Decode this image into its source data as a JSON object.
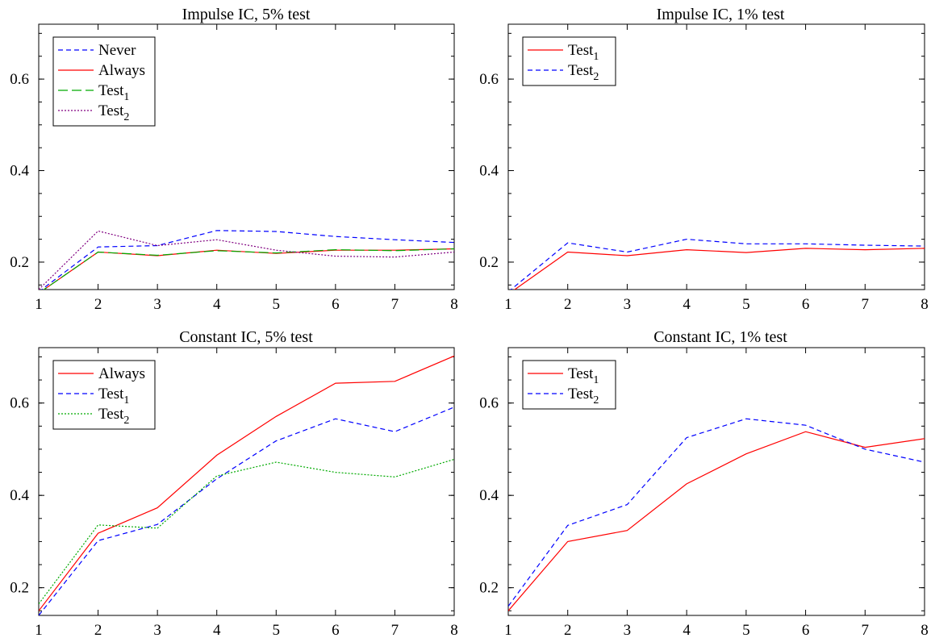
{
  "chart_data": [
    {
      "type": "line",
      "title": "Impulse IC, 5% test",
      "x": [
        1,
        2,
        3,
        4,
        5,
        6,
        7,
        8
      ],
      "xlim": [
        1,
        8
      ],
      "ylim": [
        0.14,
        0.72
      ],
      "xticks": [
        "1",
        "2",
        "3",
        "4",
        "5",
        "6",
        "7",
        "8"
      ],
      "yticks": [
        "0.2",
        "0.4",
        "0.6"
      ],
      "ytick_values": [
        0.2,
        0.4,
        0.6
      ],
      "legend_position": "top-left",
      "series": [
        {
          "name": "Never",
          "sub": "",
          "color": "#0000ff",
          "dash": "6,4",
          "values": [
            0.135,
            0.233,
            0.236,
            0.269,
            0.267,
            0.256,
            0.249,
            0.243
          ]
        },
        {
          "name": "Always",
          "sub": "",
          "color": "#ff0000",
          "dash": "",
          "values": [
            0.132,
            0.222,
            0.214,
            0.226,
            0.219,
            0.226,
            0.226,
            0.229
          ]
        },
        {
          "name": "Test",
          "sub": "1",
          "color": "#00aa00",
          "dash": "12,5",
          "values": [
            0.132,
            0.222,
            0.215,
            0.225,
            0.22,
            0.227,
            0.225,
            0.229
          ]
        },
        {
          "name": "Test",
          "sub": "2",
          "color": "#800080",
          "dash": "2,2",
          "values": [
            0.14,
            0.268,
            0.236,
            0.249,
            0.226,
            0.213,
            0.211,
            0.222
          ]
        }
      ]
    },
    {
      "type": "line",
      "title": "Impulse IC, 1% test",
      "x": [
        1,
        2,
        3,
        4,
        5,
        6,
        7,
        8
      ],
      "xlim": [
        1,
        8
      ],
      "ylim": [
        0.14,
        0.72
      ],
      "xticks": [
        "1",
        "2",
        "3",
        "4",
        "5",
        "6",
        "7",
        "8"
      ],
      "yticks": [
        "0.2",
        "0.4",
        "0.6"
      ],
      "ytick_values": [
        0.2,
        0.4,
        0.6
      ],
      "legend_position": "top-left",
      "series": [
        {
          "name": "Test",
          "sub": "1",
          "color": "#ff0000",
          "dash": "",
          "values": [
            0.13,
            0.222,
            0.214,
            0.227,
            0.221,
            0.23,
            0.227,
            0.23
          ]
        },
        {
          "name": "Test",
          "sub": "2",
          "color": "#0000ff",
          "dash": "6,4",
          "values": [
            0.135,
            0.242,
            0.222,
            0.25,
            0.24,
            0.24,
            0.237,
            0.235
          ]
        }
      ]
    },
    {
      "type": "line",
      "title": "Constant IC, 5% test",
      "x": [
        1,
        2,
        3,
        4,
        5,
        6,
        7,
        8
      ],
      "xlim": [
        1,
        8
      ],
      "ylim": [
        0.14,
        0.72
      ],
      "xticks": [
        "1",
        "2",
        "3",
        "4",
        "5",
        "6",
        "7",
        "8"
      ],
      "yticks": [
        "0.2",
        "0.4",
        "0.6"
      ],
      "ytick_values": [
        0.2,
        0.4,
        0.6
      ],
      "legend_position": "top-left",
      "series": [
        {
          "name": "Always",
          "sub": "",
          "color": "#ff0000",
          "dash": "",
          "values": [
            0.15,
            0.318,
            0.373,
            0.487,
            0.571,
            0.643,
            0.647,
            0.702
          ]
        },
        {
          "name": "Test",
          "sub": "1",
          "color": "#0000ff",
          "dash": "6,4",
          "values": [
            0.14,
            0.302,
            0.337,
            0.436,
            0.518,
            0.566,
            0.538,
            0.591
          ]
        },
        {
          "name": "Test",
          "sub": "2",
          "color": "#00aa00",
          "dash": "2,2",
          "values": [
            0.165,
            0.336,
            0.329,
            0.442,
            0.472,
            0.45,
            0.44,
            0.478
          ]
        }
      ]
    },
    {
      "type": "line",
      "title": "Constant IC, 1% test",
      "x": [
        1,
        2,
        3,
        4,
        5,
        6,
        7,
        8
      ],
      "xlim": [
        1,
        8
      ],
      "ylim": [
        0.14,
        0.72
      ],
      "xticks": [
        "1",
        "2",
        "3",
        "4",
        "5",
        "6",
        "7",
        "8"
      ],
      "yticks": [
        "0.2",
        "0.4",
        "0.6"
      ],
      "ytick_values": [
        0.2,
        0.4,
        0.6
      ],
      "legend_position": "top-left",
      "series": [
        {
          "name": "Test",
          "sub": "1",
          "color": "#ff0000",
          "dash": "",
          "values": [
            0.15,
            0.3,
            0.324,
            0.425,
            0.49,
            0.538,
            0.504,
            0.523
          ]
        },
        {
          "name": "Test",
          "sub": "2",
          "color": "#0000ff",
          "dash": "6,4",
          "values": [
            0.16,
            0.335,
            0.38,
            0.525,
            0.566,
            0.552,
            0.5,
            0.472
          ]
        }
      ]
    }
  ]
}
